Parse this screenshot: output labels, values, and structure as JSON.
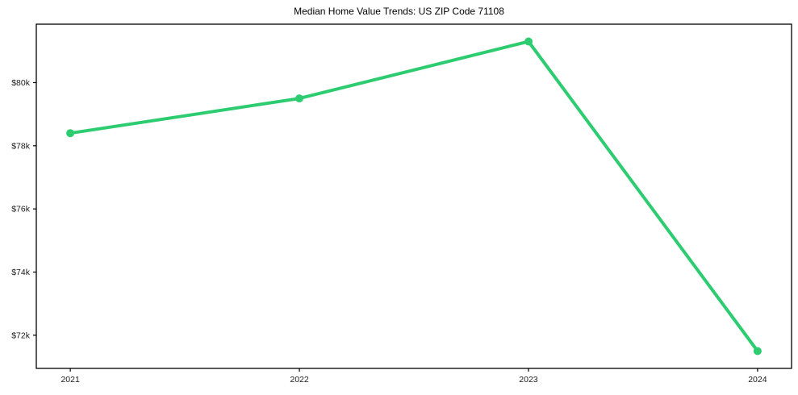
{
  "chart_data": {
    "type": "line",
    "title": "Median Home Value Trends: US ZIP Code 71108",
    "xlabel": "",
    "ylabel": "",
    "categories": [
      "2021",
      "2022",
      "2023",
      "2024"
    ],
    "values": [
      78400,
      79500,
      81300,
      71500
    ],
    "ylim": [
      70950,
      81850
    ],
    "yticks": [
      {
        "value": 72000,
        "label": "$72k"
      },
      {
        "value": 74000,
        "label": "$74k"
      },
      {
        "value": 76000,
        "label": "$76k"
      },
      {
        "value": 78000,
        "label": "$78k"
      },
      {
        "value": 80000,
        "label": "$80k"
      }
    ],
    "grid": false,
    "legend": "none",
    "colors": {
      "line": "#2ecc71",
      "marker": "#2ecc71",
      "axis": "#000000",
      "tick_text": "#1a1a1a",
      "title_text": "#000000",
      "background": "#ffffff"
    }
  }
}
